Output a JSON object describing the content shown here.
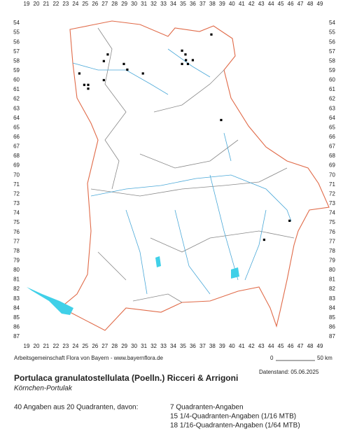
{
  "map": {
    "columns": [
      19,
      20,
      21,
      22,
      23,
      24,
      25,
      26,
      27,
      28,
      29,
      30,
      31,
      32,
      33,
      34,
      35,
      36,
      37,
      38,
      39,
      40,
      41,
      42,
      43,
      44,
      45,
      46,
      47,
      48,
      49
    ],
    "rows": [
      54,
      55,
      56,
      57,
      58,
      59,
      60,
      61,
      62,
      63,
      64,
      65,
      66,
      67,
      68,
      69,
      70,
      71,
      72,
      73,
      74,
      75,
      76,
      77,
      78,
      79,
      80,
      81,
      82,
      83,
      84,
      85,
      86,
      87
    ],
    "occurrences": [
      [
        37.9,
        55.2
      ],
      [
        34.9,
        56.9
      ],
      [
        35.25,
        57.3
      ],
      [
        27.3,
        57.3
      ],
      [
        26.9,
        58.0
      ],
      [
        28.95,
        58.3
      ],
      [
        29.3,
        58.9
      ],
      [
        30.9,
        59.3
      ],
      [
        34.9,
        58.3
      ],
      [
        35.5,
        58.3
      ],
      [
        36.0,
        57.9
      ],
      [
        35.3,
        57.9
      ],
      [
        24.4,
        59.3
      ],
      [
        26.9,
        60.0
      ],
      [
        24.9,
        60.5
      ],
      [
        25.3,
        60.5
      ],
      [
        25.3,
        60.9
      ],
      [
        38.9,
        64.2
      ],
      [
        45.9,
        74.8
      ],
      [
        43.3,
        76.8
      ]
    ]
  },
  "footer": {
    "credit": "Arbeitsgemeinschaft Flora von Bayern - www.bayernflora.de",
    "scale_start": "0",
    "scale_end": "50 km",
    "date": "Datenstand: 05.06.2025",
    "title": "Portulaca granulatostellulata (Poelln.) Ricceri & Arrigoni",
    "common_name": "Körnchen-Portulak",
    "summary": "40 Angaben aus 20 Quadranten, davon:",
    "stats": [
      "7 Quadranten-Angaben",
      "15 1/4-Quadranten-Angaben (1/16 MTB)",
      "18 1/16-Quadranten-Angaben (1/64 MTB)"
    ]
  }
}
